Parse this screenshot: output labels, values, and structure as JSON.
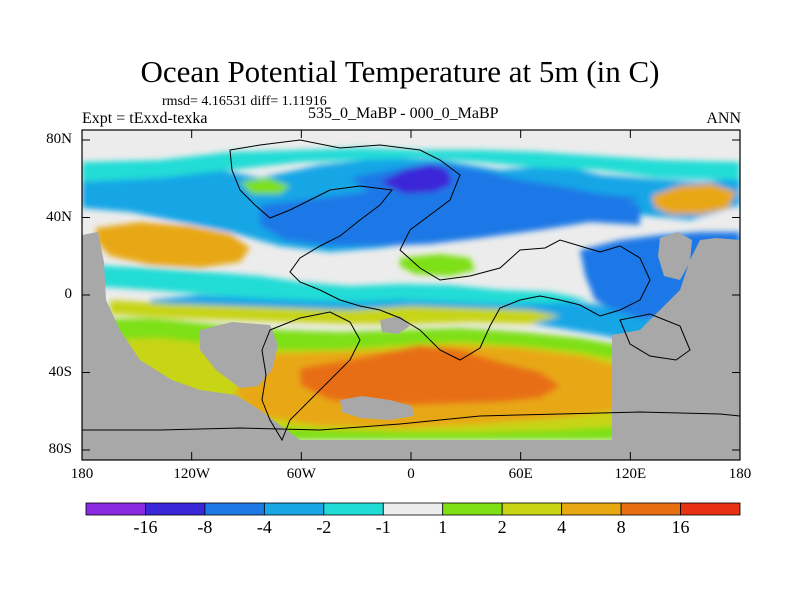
{
  "title": "Ocean Potential Temperature at 5m (in C)",
  "stats": "rmsd= 4.16531 diff= 1.11916",
  "experiment": "Expt = tExxd-texka",
  "difference": "535_0_MaBP - 000_0_MaBP",
  "season": "ANN",
  "lat_ticks": [
    {
      "label": "80N",
      "value": 80
    },
    {
      "label": "40N",
      "value": 40
    },
    {
      "label": "0",
      "value": 0
    },
    {
      "label": "40S",
      "value": -40
    },
    {
      "label": "80S",
      "value": -80
    }
  ],
  "lon_ticks": [
    {
      "label": "180",
      "value": -180
    },
    {
      "label": "120W",
      "value": -120
    },
    {
      "label": "60W",
      "value": -60
    },
    {
      "label": "0",
      "value": 0
    },
    {
      "label": "60E",
      "value": 60
    },
    {
      "label": "120E",
      "value": 120
    },
    {
      "label": "180",
      "value": 180
    }
  ],
  "colorbar": {
    "colors": [
      "#8a2be2",
      "#3a28d8",
      "#1e78e6",
      "#18a6e6",
      "#20dcd6",
      "#ececec",
      "#7ee012",
      "#c8d414",
      "#e8a812",
      "#e86e12",
      "#e83012"
    ],
    "labels": [
      "-16",
      "-8",
      "-4",
      "-2",
      "-1",
      "1",
      "2",
      "4",
      "8",
      "16"
    ]
  },
  "land_color": "#a8a8a8"
}
